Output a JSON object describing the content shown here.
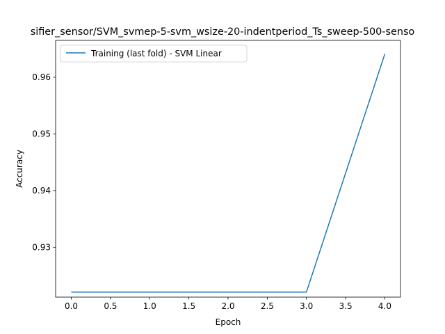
{
  "chart_data": {
    "type": "line",
    "title": "sifier_sensor/SVM_svmep-5-svm_wsize-20-indentperiod_Ts_sweep-500-senso",
    "xlabel": "Epoch",
    "ylabel": "Accuracy",
    "xlim": [
      -0.2,
      4.2
    ],
    "ylim": [
      0.9212,
      0.9665
    ],
    "x_ticks": [
      "0.0",
      "0.5",
      "1.0",
      "1.5",
      "2.0",
      "2.5",
      "3.0",
      "3.5",
      "4.0"
    ],
    "y_ticks": [
      "0.93",
      "0.94",
      "0.95",
      "0.96"
    ],
    "grid": false,
    "legend_position": "upper-left",
    "series": [
      {
        "name": "Training (last fold) - SVM Linear",
        "color": "#1f77b4",
        "x": [
          0,
          1,
          2,
          3,
          4
        ],
        "y": [
          0.9221,
          0.9221,
          0.9221,
          0.9221,
          0.9641
        ]
      }
    ]
  }
}
